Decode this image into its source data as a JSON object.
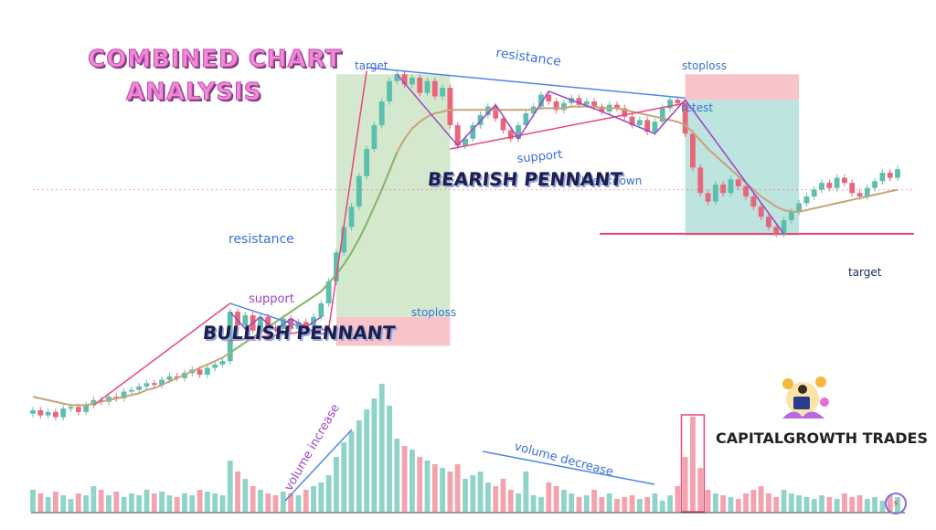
{
  "page": {
    "title_line1": "COMBINED CHART",
    "title_line2": "ANALYSIS",
    "brand": "CAPITALGROWTH TRADES",
    "bullish_pennant": "BULLISH PENNANT",
    "bearish_pennant": "BEARISH PENNANT"
  },
  "colors": {
    "up": "#5cbfae",
    "down": "#e8657a",
    "vol_up": "#8fd4c8",
    "vol_down": "#f3a3ad",
    "ma": "#c9a27a",
    "ma_green": "#6fbf6a",
    "resistance": "#4e86e8",
    "support": "#e8467c",
    "zigzag": "#9b45c9",
    "target_zone": "#cfe6c9",
    "stop_zone": "#f8c3c9",
    "retest_zone": "#bde4df",
    "title": "#f08bd6"
  },
  "chart_data": {
    "type": "candlestick",
    "title": "COMBINED CHART ANALYSIS",
    "annotations": [
      {
        "text": "resistance",
        "color": "#4e86e8",
        "pattern": "bullish pennant"
      },
      {
        "text": "support",
        "color": "#9b45c9",
        "pattern": "bullish pennant"
      },
      {
        "text": "target",
        "color": "#4e86e8",
        "zone": "bullish target"
      },
      {
        "text": "stoploss",
        "color": "#4e86e8",
        "zone": "bullish stoploss"
      },
      {
        "text": "resistance",
        "color": "#4e86e8",
        "pattern": "bearish pennant"
      },
      {
        "text": "support",
        "color": "#4e86e8",
        "pattern": "bearish pennant"
      },
      {
        "text": "stoploss",
        "color": "#4e86e8",
        "zone": "bearish stoploss"
      },
      {
        "text": "retest",
        "color": "#4e86e8"
      },
      {
        "text": "breakdown",
        "color": "#4e86e8"
      },
      {
        "text": "target",
        "color": "#1b2a66",
        "zone": "bearish target"
      },
      {
        "text": "volume increase",
        "color": "#9b45c9"
      },
      {
        "text": "volume decrease",
        "color": "#4e86e8"
      }
    ],
    "candles": [
      [
        100,
        102
      ],
      [
        102,
        99
      ],
      [
        99,
        101
      ],
      [
        101,
        98
      ],
      [
        98,
        103
      ],
      [
        103,
        104
      ],
      [
        104,
        101
      ],
      [
        101,
        105
      ],
      [
        105,
        108
      ],
      [
        108,
        107
      ],
      [
        107,
        110
      ],
      [
        110,
        109
      ],
      [
        109,
        113
      ],
      [
        113,
        114
      ],
      [
        114,
        116
      ],
      [
        116,
        118
      ],
      [
        118,
        117
      ],
      [
        117,
        120
      ],
      [
        120,
        122
      ],
      [
        122,
        121
      ],
      [
        121,
        124
      ],
      [
        124,
        126
      ],
      [
        126,
        123
      ],
      [
        123,
        127
      ],
      [
        127,
        129
      ],
      [
        129,
        131
      ],
      [
        131,
        160
      ],
      [
        160,
        152
      ],
      [
        152,
        158
      ],
      [
        158,
        149
      ],
      [
        149,
        157
      ],
      [
        157,
        151
      ],
      [
        151,
        150
      ],
      [
        150,
        156
      ],
      [
        156,
        150
      ],
      [
        150,
        154
      ],
      [
        154,
        152
      ],
      [
        152,
        157
      ],
      [
        157,
        165
      ],
      [
        165,
        178
      ],
      [
        178,
        195
      ],
      [
        195,
        210
      ],
      [
        210,
        222
      ],
      [
        222,
        240
      ],
      [
        240,
        256
      ],
      [
        256,
        270
      ],
      [
        270,
        284
      ],
      [
        284,
        296
      ],
      [
        296,
        300
      ],
      [
        300,
        294
      ],
      [
        294,
        298
      ],
      [
        298,
        289
      ],
      [
        289,
        296
      ],
      [
        296,
        287
      ],
      [
        287,
        292
      ],
      [
        292,
        270
      ],
      [
        270,
        258
      ],
      [
        258,
        262
      ],
      [
        262,
        270
      ],
      [
        270,
        276
      ],
      [
        276,
        281
      ],
      [
        281,
        274
      ],
      [
        274,
        267
      ],
      [
        267,
        262
      ],
      [
        262,
        270
      ],
      [
        270,
        277
      ],
      [
        277,
        281
      ],
      [
        281,
        288
      ],
      [
        288,
        284
      ],
      [
        284,
        279
      ],
      [
        279,
        283
      ],
      [
        283,
        286
      ],
      [
        286,
        282
      ],
      [
        282,
        284
      ],
      [
        284,
        281
      ],
      [
        281,
        278
      ],
      [
        278,
        282
      ],
      [
        282,
        280
      ],
      [
        280,
        275
      ],
      [
        275,
        270
      ],
      [
        270,
        273
      ],
      [
        273,
        266
      ],
      [
        266,
        272
      ],
      [
        272,
        280
      ],
      [
        280,
        285
      ],
      [
        285,
        283
      ],
      [
        283,
        265
      ],
      [
        265,
        245
      ],
      [
        245,
        230
      ],
      [
        230,
        225
      ],
      [
        225,
        235
      ],
      [
        235,
        230
      ],
      [
        230,
        238
      ],
      [
        238,
        234
      ],
      [
        234,
        228
      ],
      [
        228,
        222
      ],
      [
        222,
        216
      ],
      [
        216,
        210
      ],
      [
        210,
        206
      ],
      [
        206,
        214
      ],
      [
        214,
        219
      ],
      [
        219,
        224
      ],
      [
        224,
        228
      ],
      [
        228,
        232
      ],
      [
        232,
        236
      ],
      [
        236,
        233
      ],
      [
        233,
        239
      ],
      [
        239,
        236
      ],
      [
        236,
        230
      ],
      [
        230,
        228
      ],
      [
        228,
        233
      ],
      [
        233,
        237
      ],
      [
        237,
        242
      ],
      [
        242,
        239
      ],
      [
        239,
        244
      ]
    ],
    "volume": [
      12,
      10,
      8,
      11,
      9,
      7,
      10,
      9,
      14,
      12,
      9,
      11,
      8,
      10,
      9,
      12,
      10,
      11,
      9,
      8,
      10,
      9,
      12,
      11,
      10,
      9,
      28,
      22,
      18,
      14,
      12,
      10,
      9,
      11,
      10,
      9,
      12,
      14,
      16,
      20,
      30,
      38,
      44,
      50,
      56,
      62,
      70,
      58,
      40,
      36,
      34,
      30,
      28,
      26,
      24,
      22,
      26,
      18,
      20,
      22,
      16,
      14,
      18,
      12,
      10,
      22,
      9,
      8,
      16,
      14,
      12,
      10,
      8,
      9,
      12,
      8,
      10,
      7,
      8,
      9,
      7,
      8,
      10,
      6,
      9,
      14,
      30,
      52,
      24,
      12,
      10,
      9,
      8,
      7,
      10,
      12,
      14,
      10,
      8,
      12,
      10,
      9,
      8,
      7,
      9,
      8,
      7,
      10,
      8,
      9,
      7,
      8,
      6,
      9,
      8
    ],
    "ma": [
      110,
      109,
      108,
      107,
      106,
      105,
      105,
      105,
      106,
      107,
      108,
      109,
      110,
      111,
      112,
      114,
      115,
      117,
      119,
      121,
      123,
      125,
      127,
      129,
      131,
      133,
      136,
      139,
      142,
      145,
      148,
      151,
      154,
      157,
      160,
      163,
      166,
      169,
      172,
      177,
      182,
      188,
      195,
      203,
      212,
      222,
      232,
      243,
      254,
      262,
      268,
      272,
      275,
      277,
      278,
      279,
      279,
      279,
      279,
      279,
      279,
      279,
      279,
      279,
      279,
      279,
      279,
      280,
      280,
      280,
      280,
      281,
      281,
      281,
      281,
      280,
      280,
      280,
      279,
      278,
      277,
      276,
      275,
      274,
      273,
      272,
      270,
      266,
      261,
      256,
      252,
      248,
      244,
      240,
      236,
      232,
      228,
      225,
      222,
      220,
      219,
      219,
      220,
      221,
      222,
      223,
      224,
      225,
      226,
      227,
      228,
      229,
      230,
      231,
      232
    ]
  }
}
